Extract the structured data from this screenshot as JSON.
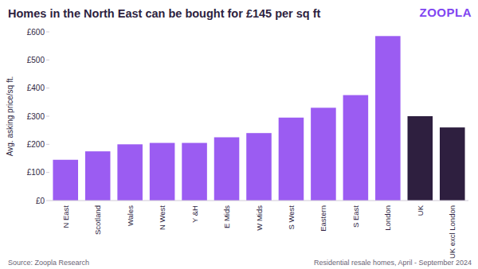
{
  "chart_data": {
    "type": "bar",
    "title": "Homes in the North East can be bought for £145 per sq ft",
    "logo": "ZOOPLA",
    "y_label": "Avg. asking price/sq ft.",
    "source": "Source: Zoopla Research",
    "note": "Residential resale homes, April - September 2024",
    "categories": [
      "N East",
      "Scotland",
      "Wales",
      "N West",
      "Y &H",
      "E Mids",
      "W Mids",
      "S West",
      "Eastern",
      "S East",
      "London",
      "UK",
      "UK excl London"
    ],
    "values": [
      145,
      175,
      200,
      205,
      205,
      225,
      240,
      295,
      330,
      375,
      585,
      300,
      260
    ],
    "colors": [
      "#9b5cf2",
      "#9b5cf2",
      "#9b5cf2",
      "#9b5cf2",
      "#9b5cf2",
      "#9b5cf2",
      "#9b5cf2",
      "#9b5cf2",
      "#9b5cf2",
      "#9b5cf2",
      "#9b5cf2",
      "#2e1f3f",
      "#2e1f3f"
    ],
    "ylim": [
      0,
      600
    ],
    "yticks": [
      {
        "value": 0,
        "label": "£0"
      },
      {
        "value": 100,
        "label": "£100"
      },
      {
        "value": 200,
        "label": "£200"
      },
      {
        "value": 300,
        "label": "£300"
      },
      {
        "value": 400,
        "label": "£400"
      },
      {
        "value": 500,
        "label": "£500"
      },
      {
        "value": 600,
        "label": "£600"
      }
    ],
    "grid": false
  }
}
